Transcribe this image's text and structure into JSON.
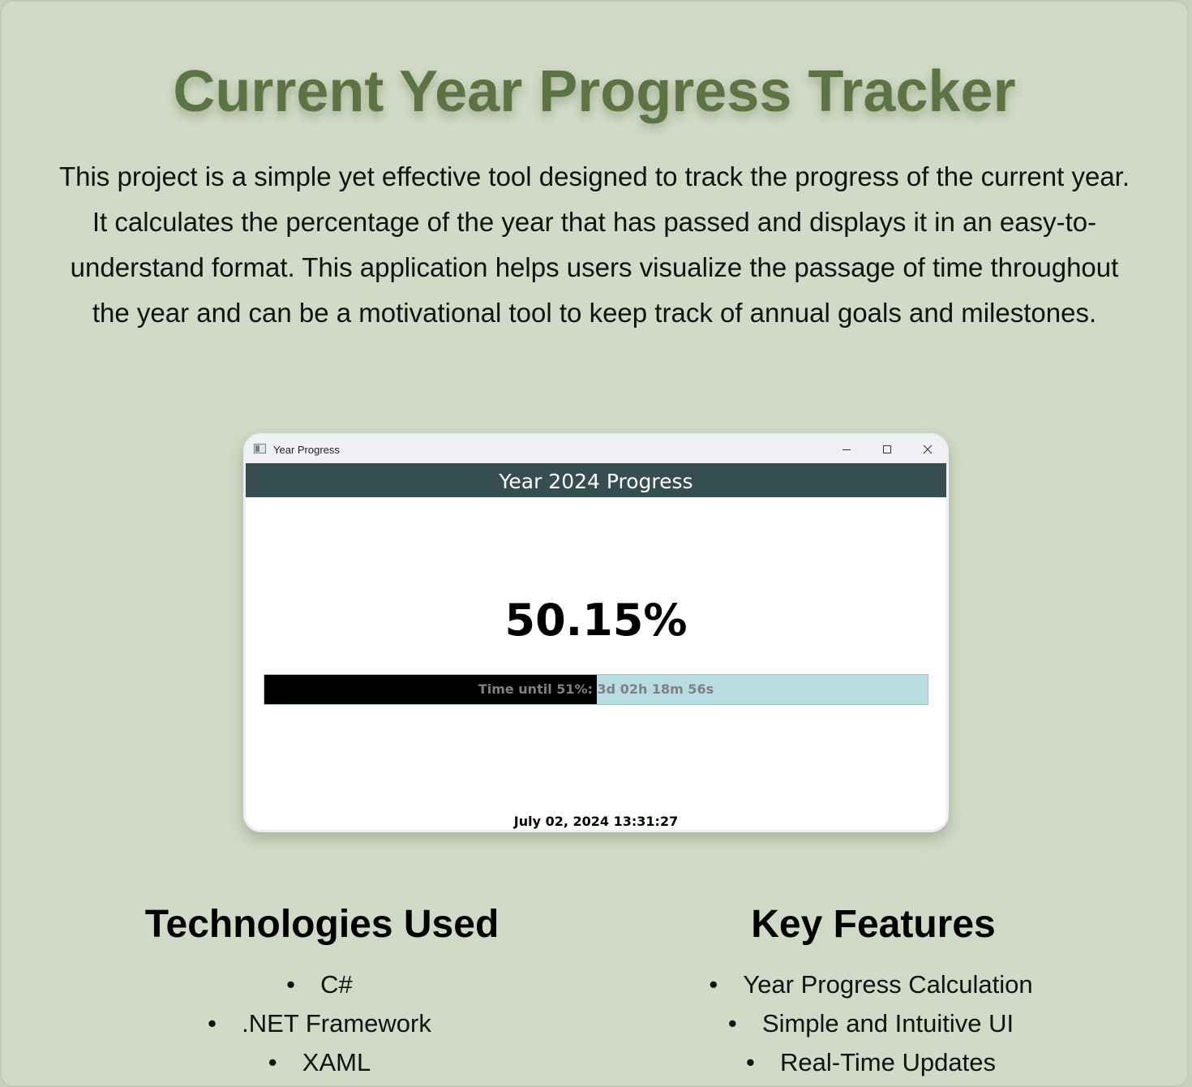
{
  "page": {
    "title": "Current Year Progress Tracker",
    "description": "This project is a simple yet effective tool designed to track the progress of the current year. It calculates the percentage of the year that has passed and displays it in an easy-to-understand format. This application helps users visualize the passage of time throughout the year and can be a motivational tool to keep track of annual goals and milestones."
  },
  "app_window": {
    "window_title": "Year Progress",
    "header": "Year 2024 Progress",
    "percent_text": "50.15%",
    "progress_fraction": 0.5015,
    "progress_bar_text": "Time until 51%: 3d 02h 18m 56s",
    "datetime": "July 02, 2024 13:31:27",
    "colors": {
      "header_bg": "#374e50",
      "bar_fill": "#000000",
      "bar_track": "#b7dde3"
    },
    "controls": [
      "minimize-icon",
      "maximize-icon",
      "close-icon"
    ]
  },
  "technologies": {
    "heading": "Technologies Used",
    "items": [
      "C#",
      ".NET Framework",
      "XAML"
    ]
  },
  "features": {
    "heading": "Key Features",
    "items": [
      "Year Progress Calculation",
      "Simple and Intuitive UI",
      "Real-Time Updates"
    ]
  },
  "colors": {
    "background": "#d1dac6",
    "title": "#5c7343"
  }
}
